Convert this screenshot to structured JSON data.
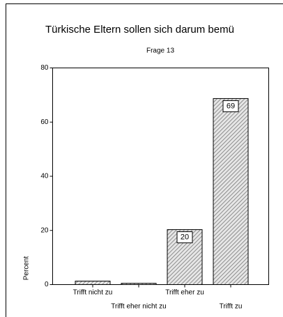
{
  "chart_data": {
    "type": "bar",
    "title": "Türkische Eltern sollen sich darum bemü",
    "subtitle": "Frage 13",
    "y_label": "Percent",
    "categories": [
      "Trifft nicht zu",
      "Trifft eher nicht zu",
      "Trifft eher zu",
      "Trifft zu"
    ],
    "values": [
      1.3,
      0.5,
      20.3,
      68.7
    ],
    "value_labels": [
      null,
      null,
      "20",
      "69"
    ],
    "color": "#9a9a9a",
    "ylim": [
      0,
      80
    ],
    "yticks": [
      0,
      20,
      40,
      60,
      80
    ],
    "grid": false
  }
}
